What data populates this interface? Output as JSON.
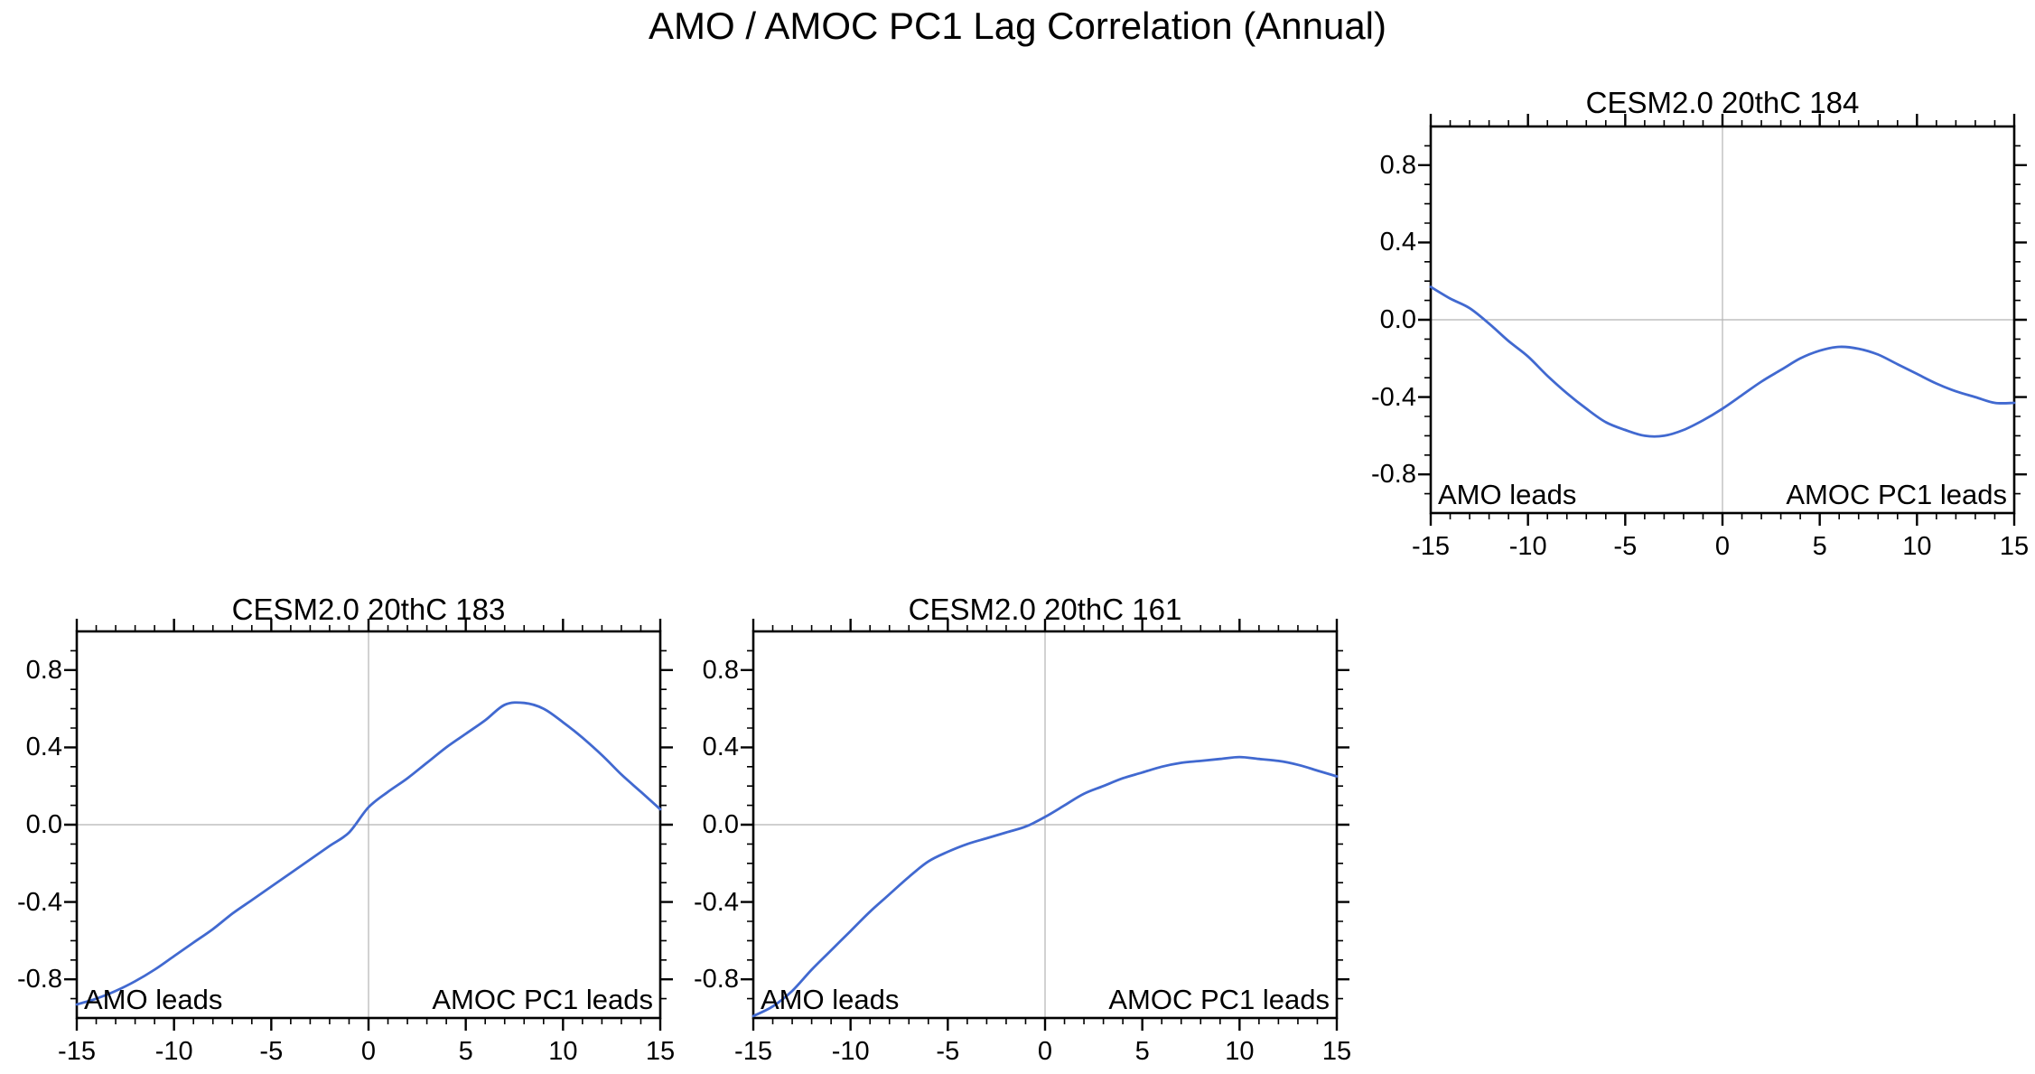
{
  "main_title": "AMO / AMOC PC1 Lag Correlation (Annual)",
  "colors": {
    "background": "#FFFFFF",
    "curve": "#4169D0",
    "grid": "#B4B4B4",
    "axis": "#000000",
    "text": "#000000"
  },
  "annotations": {
    "left": "AMO leads",
    "right": "AMOC PC1 leads"
  },
  "axes": {
    "xlim": [
      -15,
      15
    ],
    "ylim": [
      -1,
      1
    ],
    "x_major_ticks": [
      -15,
      -10,
      -5,
      0,
      5,
      10,
      15
    ],
    "x_tick_labels": [
      "-15",
      "-10",
      "-5",
      "0",
      "5",
      "10",
      "15"
    ],
    "x_minor_step": 1,
    "y_major_ticks": [
      0.8,
      0.4,
      0.0,
      -0.4,
      -0.8
    ],
    "y_tick_labels": [
      "0.8",
      "0.4",
      "0.0",
      "-0.4",
      "-0.8"
    ],
    "y_minor_step": 0.1,
    "zero_gridlines": true,
    "lags": [
      -15,
      -14,
      -13,
      -12,
      -11,
      -10,
      -9,
      -8,
      -7,
      -6,
      -5,
      -4,
      -3,
      -2,
      -1,
      0,
      1,
      2,
      3,
      4,
      5,
      6,
      7,
      8,
      9,
      10,
      11,
      12,
      13,
      14,
      15
    ]
  },
  "chart_data": [
    {
      "type": "line",
      "title": "CESM2.0 20thC 184",
      "series_name": "AMO / AMOC PC1 lag correlation",
      "values": [
        0.17,
        0.11,
        0.06,
        -0.02,
        -0.11,
        -0.19,
        -0.29,
        -0.38,
        -0.46,
        -0.53,
        -0.57,
        -0.6,
        -0.6,
        -0.57,
        -0.52,
        -0.46,
        -0.39,
        -0.32,
        -0.26,
        -0.2,
        -0.16,
        -0.14,
        -0.15,
        -0.18,
        -0.23,
        -0.28,
        -0.33,
        -0.37,
        -0.4,
        -0.43,
        -0.43
      ]
    },
    {
      "type": "line",
      "title": "CESM2.0 20thC 183",
      "series_name": "AMO / AMOC PC1 lag correlation",
      "values": [
        -0.93,
        -0.9,
        -0.86,
        -0.81,
        -0.75,
        -0.68,
        -0.61,
        -0.54,
        -0.46,
        -0.39,
        -0.32,
        -0.25,
        -0.18,
        -0.11,
        -0.04,
        0.09,
        0.17,
        0.24,
        0.32,
        0.4,
        0.47,
        0.54,
        0.62,
        0.63,
        0.6,
        0.53,
        0.45,
        0.36,
        0.26,
        0.17,
        0.08
      ]
    },
    {
      "type": "line",
      "title": "CESM2.0 20thC 161",
      "series_name": "AMO / AMOC PC1 lag correlation",
      "values": [
        -0.99,
        -0.94,
        -0.86,
        -0.75,
        -0.65,
        -0.55,
        -0.45,
        -0.36,
        -0.27,
        -0.19,
        -0.14,
        -0.1,
        -0.07,
        -0.04,
        -0.01,
        0.04,
        0.1,
        0.16,
        0.2,
        0.24,
        0.27,
        0.3,
        0.32,
        0.33,
        0.34,
        0.35,
        0.34,
        0.33,
        0.31,
        0.28,
        0.25
      ]
    }
  ]
}
